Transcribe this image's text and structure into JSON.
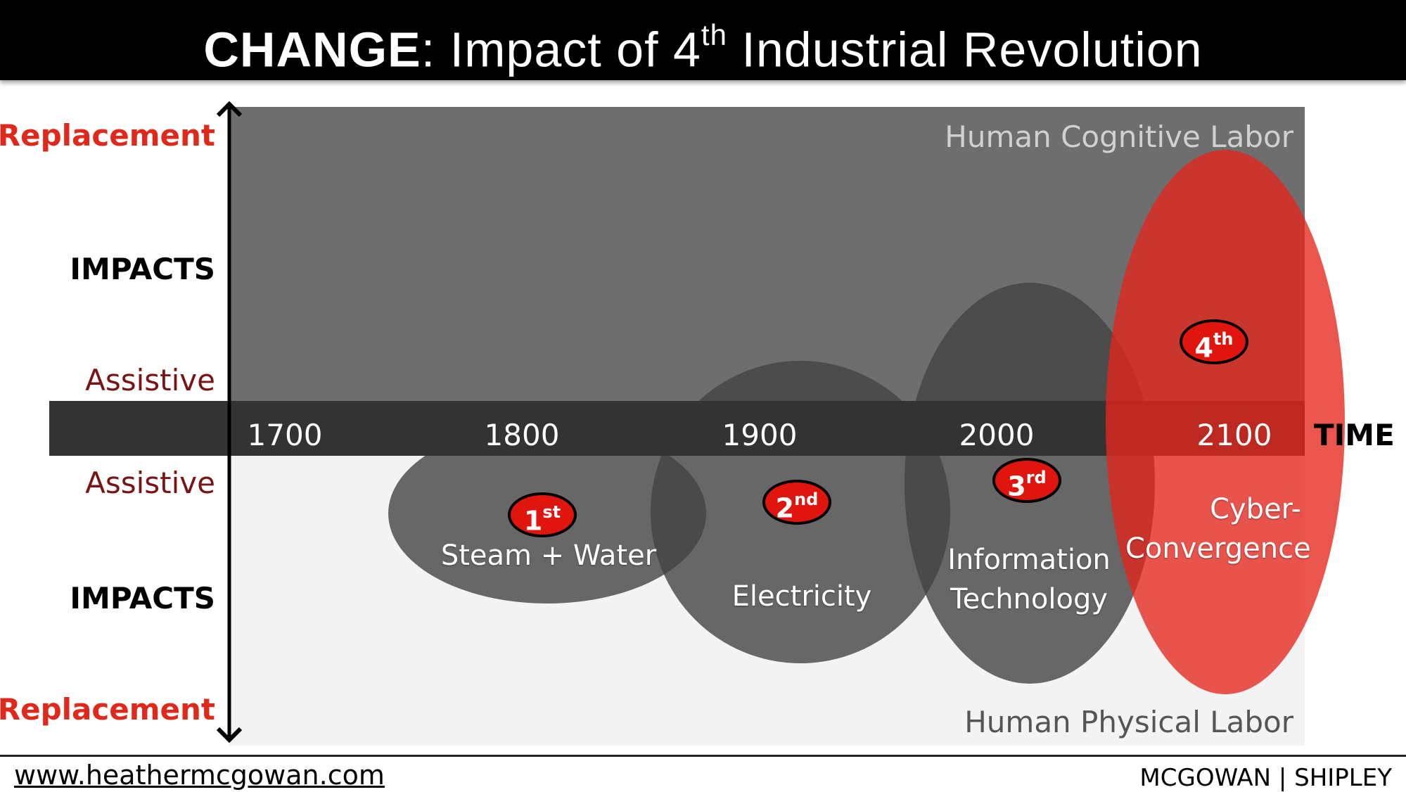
{
  "header": {
    "title_bold": "CHANGE",
    "title_rest": ": Impact of 4",
    "title_sup": "th",
    "title_tail": " Industrial Revolution"
  },
  "axis": {
    "top_replacement": "Replacement",
    "top_impacts": "IMPACTS",
    "top_assistive": "Assistive",
    "bottom_assistive": "Assistive",
    "bottom_impacts": "IMPACTS",
    "bottom_replacement": "Replacement",
    "time_label": "TIME",
    "years": [
      "1700",
      "1800",
      "1900",
      "2000",
      "2100"
    ]
  },
  "regions": {
    "cognitive": "Human Cognitive Labor",
    "physical": "Human Physical Labor"
  },
  "eras": [
    {
      "badge_num": "1",
      "badge_sup": "st",
      "label": "Steam + Water"
    },
    {
      "badge_num": "2",
      "badge_sup": "nd",
      "label": "Electricity"
    },
    {
      "badge_num": "3",
      "badge_sup": "rd",
      "label_line1": "Information",
      "label_line2": "Technology"
    },
    {
      "badge_num": "4",
      "badge_sup": "th",
      "label_line1": "Cyber-",
      "label_line2": "Convergence"
    }
  ],
  "colors": {
    "cognitive_bg": "#6e6e6e",
    "physical_bg": "#f3f3f3",
    "timeline_band": "#333333",
    "ellipse_gray": "#444444",
    "ellipse_red": "#e4261c",
    "replacement_text": "#e0281b",
    "assistive_text": "#7a1414"
  },
  "footer": {
    "url": "www.heathermcgowan.com",
    "brand": "MCGOWAN | SHIPLEY"
  }
}
